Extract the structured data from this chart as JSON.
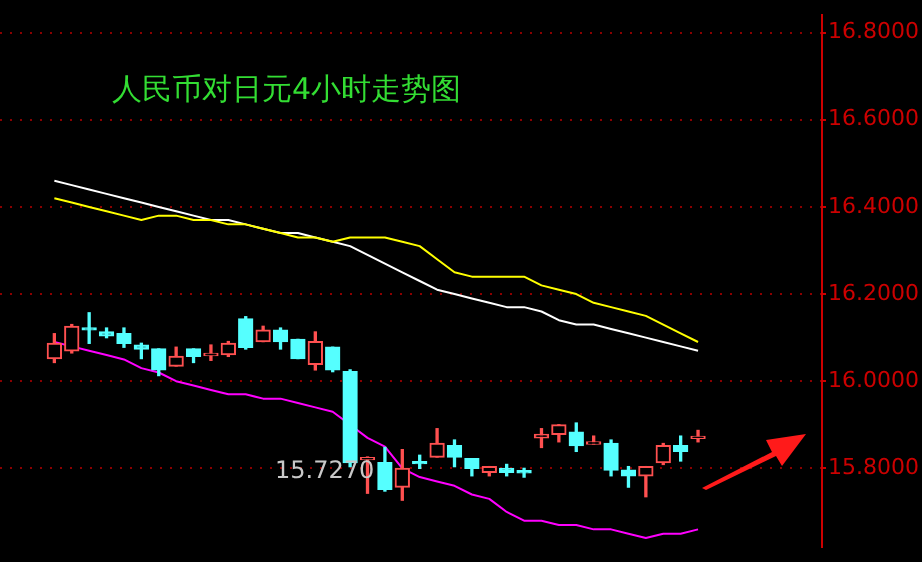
{
  "chart_data": {
    "type": "candlestick",
    "title": "人民币对日元4小时走势图",
    "categories": [
      null,
      null,
      null,
      null,
      null,
      null,
      null,
      null,
      null,
      null,
      null,
      null,
      null,
      null,
      null,
      null,
      null,
      null,
      null,
      null,
      null,
      null,
      null,
      null,
      null,
      null,
      null,
      null,
      null,
      null,
      null,
      null,
      null,
      null,
      null,
      null,
      null,
      null
    ],
    "ohlc": [
      [
        16.052,
        16.109,
        16.043,
        16.087
      ],
      [
        16.07,
        16.13,
        16.065,
        16.126
      ],
      [
        16.122,
        16.157,
        16.087,
        16.118
      ],
      [
        16.113,
        16.122,
        16.1,
        16.104
      ],
      [
        16.109,
        16.122,
        16.078,
        16.087
      ],
      [
        16.083,
        16.087,
        16.052,
        16.074
      ],
      [
        16.074,
        16.074,
        16.013,
        16.026
      ],
      [
        16.035,
        16.078,
        16.035,
        16.057
      ],
      [
        16.074,
        16.074,
        16.043,
        16.057
      ],
      [
        16.059,
        16.083,
        16.048,
        16.061
      ],
      [
        16.061,
        16.091,
        16.057,
        16.087
      ],
      [
        16.143,
        16.148,
        16.074,
        16.078
      ],
      [
        16.091,
        16.126,
        16.091,
        16.117
      ],
      [
        16.117,
        16.122,
        16.074,
        16.091
      ],
      [
        16.096,
        16.096,
        16.052,
        16.052
      ],
      [
        16.039,
        16.113,
        16.026,
        16.091
      ],
      [
        16.078,
        16.078,
        16.022,
        16.026
      ],
      [
        16.022,
        16.026,
        15.804,
        15.813
      ],
      [
        15.82,
        15.826,
        15.743,
        15.822
      ],
      [
        15.813,
        15.848,
        15.748,
        15.752
      ],
      [
        15.757,
        15.843,
        15.727,
        15.8
      ],
      [
        15.814,
        15.83,
        15.8,
        15.811
      ],
      [
        15.826,
        15.891,
        15.826,
        15.857
      ],
      [
        15.852,
        15.865,
        15.804,
        15.826
      ],
      [
        15.822,
        15.822,
        15.783,
        15.8
      ],
      [
        15.791,
        15.804,
        15.783,
        15.804
      ],
      [
        15.8,
        15.809,
        15.783,
        15.791
      ],
      [
        15.792,
        15.8,
        15.78,
        15.79
      ],
      [
        15.87,
        15.891,
        15.848,
        15.878
      ],
      [
        15.878,
        15.9,
        15.861,
        15.9
      ],
      [
        15.883,
        15.904,
        15.839,
        15.852
      ],
      [
        15.856,
        15.874,
        15.856,
        15.857
      ],
      [
        15.857,
        15.865,
        15.783,
        15.796
      ],
      [
        15.796,
        15.804,
        15.757,
        15.783
      ],
      [
        15.783,
        15.804,
        15.735,
        15.804
      ],
      [
        15.813,
        15.857,
        15.809,
        15.852
      ],
      [
        15.852,
        15.874,
        15.817,
        15.839
      ],
      [
        15.869,
        15.887,
        15.861,
        15.87
      ]
    ],
    "colors": [
      "#ff5050",
      "#ff5050",
      "#55ffff",
      "#55ffff",
      "#55ffff",
      "#55ffff",
      "#55ffff",
      "#ff5050",
      "#55ffff",
      "#ff5050",
      "#ff5050",
      "#55ffff",
      "#ff5050",
      "#55ffff",
      "#55ffff",
      "#ff5050",
      "#55ffff",
      "#55ffff",
      "#ff5050",
      "#55ffff",
      "#ff5050",
      "#55ffff",
      "#ff5050",
      "#55ffff",
      "#55ffff",
      "#ff5050",
      "#55ffff",
      "#55ffff",
      "#ff5050",
      "#ff5050",
      "#55ffff",
      "#ff5050",
      "#55ffff",
      "#55ffff",
      "#ff5050",
      "#ff5050",
      "#55ffff",
      "#ff5050"
    ],
    "series": [
      {
        "type": "line",
        "color": "#ffff00",
        "values": [
          16.42,
          16.41,
          16.4,
          16.39,
          16.38,
          16.37,
          16.38,
          16.38,
          16.37,
          16.37,
          16.36,
          16.36,
          16.35,
          16.34,
          16.33,
          16.33,
          16.32,
          16.33,
          16.33,
          16.33,
          16.32,
          16.31,
          16.28,
          16.25,
          16.24,
          16.24,
          16.24,
          16.24,
          16.22,
          16.21,
          16.2,
          16.18,
          16.17,
          16.16,
          16.15,
          16.13,
          16.11,
          16.09
        ]
      },
      {
        "type": "line",
        "color": "#ffffff",
        "values": [
          16.46,
          16.45,
          16.44,
          16.43,
          16.42,
          16.41,
          16.4,
          16.39,
          16.38,
          16.37,
          16.37,
          16.36,
          16.35,
          16.34,
          16.34,
          16.33,
          16.32,
          16.31,
          16.29,
          16.27,
          16.25,
          16.23,
          16.21,
          16.2,
          16.19,
          16.18,
          16.17,
          16.17,
          16.16,
          16.14,
          16.13,
          16.13,
          16.12,
          16.11,
          16.1,
          16.09,
          16.08,
          16.07
        ]
      },
      {
        "type": "line",
        "color": "#ff00ff",
        "values": [
          16.09,
          16.08,
          16.07,
          16.06,
          16.05,
          16.03,
          16.02,
          16.0,
          15.99,
          15.98,
          15.97,
          15.97,
          15.96,
          15.96,
          15.95,
          15.94,
          15.93,
          15.9,
          15.87,
          15.85,
          15.8,
          15.78,
          15.77,
          15.76,
          15.74,
          15.73,
          15.7,
          15.68,
          15.68,
          15.67,
          15.67,
          15.66,
          15.66,
          15.65,
          15.64,
          15.65,
          15.65,
          15.66
        ]
      }
    ],
    "ylim": [
      15.62,
      16.84
    ],
    "yticks": [
      {
        "value": 15.8,
        "label": "15.8000"
      },
      {
        "value": 16.0,
        "label": "16.0000"
      },
      {
        "value": 16.2,
        "label": "16.2000"
      },
      {
        "value": 16.4,
        "label": "16.4000"
      },
      {
        "value": 16.6,
        "label": "16.6000"
      },
      {
        "value": 16.8,
        "label": "16.8000"
      }
    ],
    "grid": "y",
    "tick_labels": "y",
    "annotations": [
      "15.7270"
    ]
  }
}
